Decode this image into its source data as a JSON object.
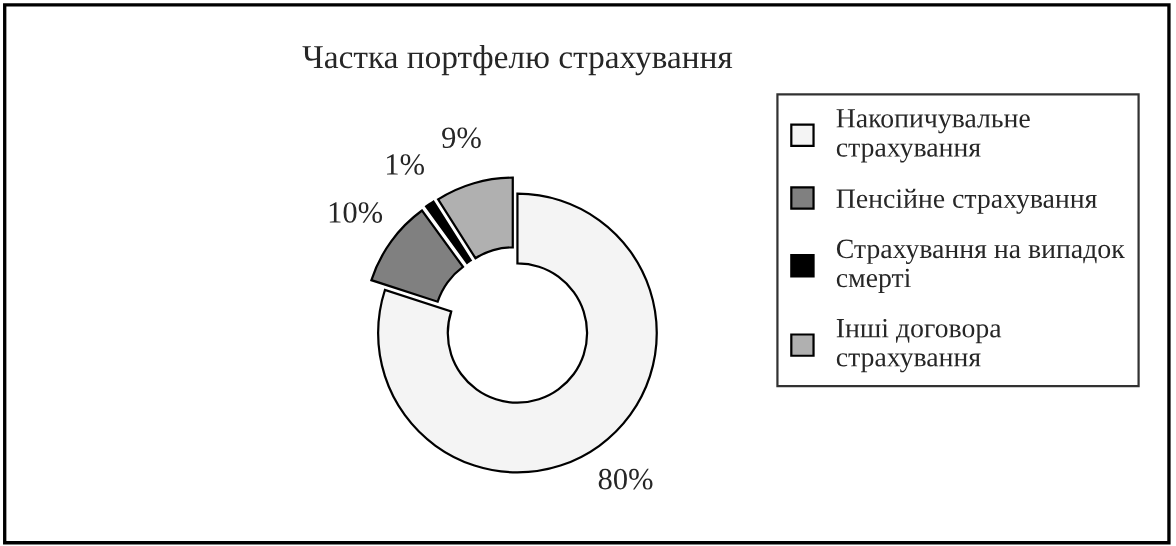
{
  "chart_data": {
    "type": "donut",
    "title": "Частка портфелю страхування",
    "categories": [
      "Накопичувальне\nстрахування",
      "Пенсійне страхування",
      "Страхування на випадок\nсмерті",
      "Інші договора\nстрахування"
    ],
    "values": [
      80,
      10,
      1,
      9
    ],
    "colors": [
      "#f4f4f4",
      "#808080",
      "#000000",
      "#b0b0b0"
    ],
    "value_labels": [
      "80%",
      "10%",
      "1%",
      "9%"
    ],
    "legend": "right"
  }
}
